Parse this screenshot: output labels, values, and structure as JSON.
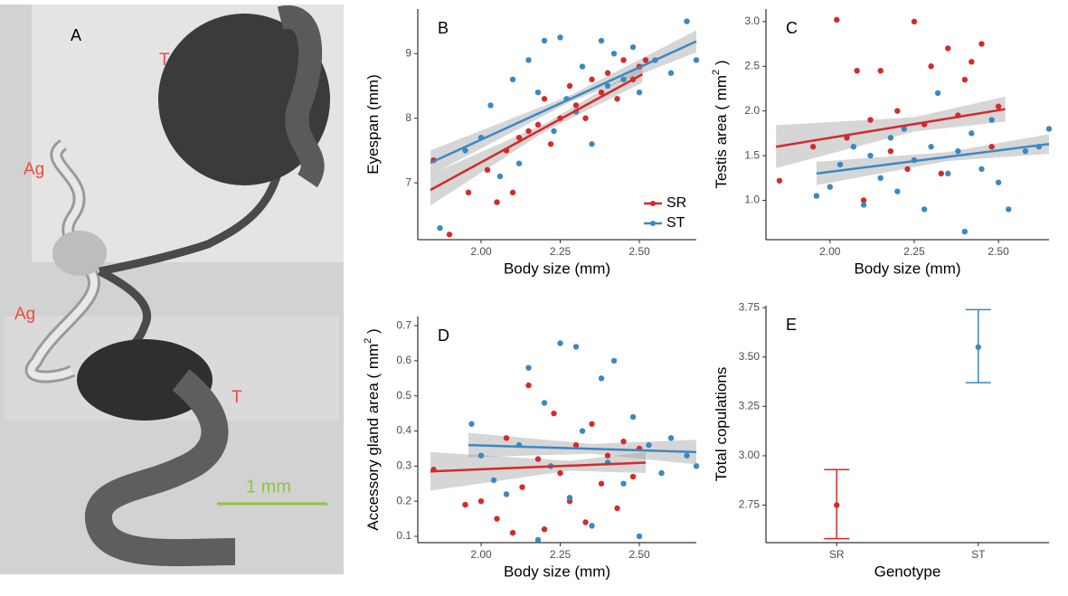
{
  "photo": {
    "panel": "A",
    "labels": [
      "T",
      "Ag",
      "Ag",
      "T"
    ],
    "scale": "1 mm"
  },
  "chart_data": [
    {
      "type": "scatter",
      "panel": "B",
      "xlabel": "Body size (mm)",
      "ylabel": "Eyespan (mm)",
      "xlim": [
        1.8,
        2.68
      ],
      "xticks": [
        {
          "value": 2,
          "label": "2.00"
        },
        {
          "value": 2.25,
          "label": "2.25"
        },
        {
          "value": 2.5,
          "label": "2.50"
        }
      ],
      "ylim": [
        6.12,
        9.69
      ],
      "yticks": [
        7,
        8,
        9
      ],
      "legend": "bottom-right",
      "series": [
        {
          "name": "SR",
          "color": "#d42a2a",
          "x": [
            1.85,
            1.9,
            1.96,
            2.02,
            2.05,
            2.08,
            2.1,
            2.12,
            2.15,
            2.18,
            2.2,
            2.22,
            2.25,
            2.28,
            2.3,
            2.33,
            2.35,
            2.38,
            2.4,
            2.43,
            2.45,
            2.48,
            2.5,
            2.52
          ],
          "y": [
            7.35,
            6.2,
            6.85,
            7.2,
            6.7,
            7.5,
            6.85,
            7.7,
            7.8,
            7.9,
            8.3,
            7.6,
            8.0,
            8.5,
            8.2,
            8.0,
            8.6,
            8.4,
            8.7,
            8.3,
            8.9,
            8.6,
            8.8,
            8.9
          ],
          "fit": {
            "x": [
              1.84,
              2.51
            ],
            "y": [
              6.89,
              8.68
            ]
          },
          "band": {
            "x": [
              1.84,
              2.2,
              2.51
            ],
            "lower": [
              6.65,
              7.79,
              8.55
            ],
            "upper": [
              7.13,
              7.91,
              8.81
            ]
          }
        },
        {
          "name": "ST",
          "color": "#3b88c3",
          "x": [
            1.87,
            1.95,
            2.0,
            2.03,
            2.06,
            2.1,
            2.12,
            2.15,
            2.18,
            2.2,
            2.23,
            2.25,
            2.27,
            2.3,
            2.32,
            2.35,
            2.38,
            2.4,
            2.42,
            2.45,
            2.48,
            2.5,
            2.55,
            2.6,
            2.65,
            2.68
          ],
          "y": [
            6.3,
            7.5,
            7.7,
            8.2,
            7.1,
            8.6,
            7.3,
            8.9,
            8.4,
            9.2,
            7.8,
            9.25,
            8.3,
            8.1,
            8.8,
            7.6,
            9.2,
            8.5,
            9.0,
            8.6,
            9.1,
            8.4,
            8.9,
            8.7,
            9.5,
            8.9
          ],
          "fit": {
            "x": [
              1.84,
              2.68
            ],
            "y": [
              7.31,
              9.19
            ]
          },
          "band": {
            "x": [
              1.84,
              2.28,
              2.68
            ],
            "lower": [
              7.12,
              8.25,
              9.02
            ],
            "upper": [
              7.5,
              8.35,
              9.36
            ]
          }
        }
      ]
    },
    {
      "type": "scatter",
      "panel": "C",
      "xlabel": "Body size (mm)",
      "ylabel": "Testis area ( mm",
      "ylabel_sup": "2",
      "ylabel_end": " )",
      "xlim": [
        1.81,
        2.65
      ],
      "xticks": [
        {
          "value": 2,
          "label": "2.00"
        },
        {
          "value": 2.25,
          "label": "2.25"
        },
        {
          "value": 2.5,
          "label": "2.50"
        }
      ],
      "ylim": [
        0.56,
        3.14
      ],
      "yticks": [
        {
          "value": 1,
          "label": "1.0"
        },
        1.5,
        {
          "value": 2,
          "label": "2.0"
        },
        2.5,
        {
          "value": 3,
          "label": "3.0"
        }
      ],
      "series": [
        {
          "color": "#d42a2a",
          "x": [
            1.85,
            1.95,
            2.02,
            2.05,
            2.08,
            2.1,
            2.12,
            2.15,
            2.18,
            2.2,
            2.23,
            2.25,
            2.28,
            2.3,
            2.33,
            2.35,
            2.38,
            2.4,
            2.42,
            2.45,
            2.48,
            2.5
          ],
          "y": [
            1.22,
            1.6,
            3.02,
            1.7,
            2.45,
            1.0,
            1.9,
            2.45,
            1.55,
            2.0,
            1.35,
            3.0,
            1.85,
            2.5,
            1.3,
            2.7,
            1.95,
            2.35,
            2.55,
            2.75,
            1.6,
            2.05
          ],
          "fit": {
            "x": [
              1.84,
              2.52
            ],
            "y": [
              1.6,
              2.02
            ]
          },
          "band": {
            "x": [
              1.84,
              2.25,
              2.52
            ],
            "lower": [
              1.36,
              1.77,
              1.88
            ],
            "upper": [
              1.84,
              1.93,
              2.16
            ]
          }
        },
        {
          "color": "#3b88c3",
          "x": [
            1.96,
            2.0,
            2.03,
            2.07,
            2.1,
            2.12,
            2.15,
            2.18,
            2.2,
            2.22,
            2.25,
            2.28,
            2.3,
            2.32,
            2.35,
            2.38,
            2.4,
            2.42,
            2.45,
            2.48,
            2.5,
            2.53,
            2.58,
            2.62,
            2.65
          ],
          "y": [
            1.05,
            1.15,
            1.4,
            1.6,
            0.95,
            1.5,
            1.25,
            1.7,
            1.1,
            1.8,
            1.45,
            0.9,
            1.6,
            2.2,
            1.3,
            1.55,
            0.65,
            1.75,
            1.35,
            1.9,
            1.2,
            0.9,
            1.55,
            1.6,
            1.8
          ],
          "fit": {
            "x": [
              1.96,
              2.65
            ],
            "y": [
              1.3,
              1.63
            ]
          },
          "band": {
            "x": [
              1.96,
              2.35,
              2.65
            ],
            "lower": [
              1.17,
              1.44,
              1.52
            ],
            "upper": [
              1.43,
              1.54,
              1.74
            ]
          }
        }
      ]
    },
    {
      "type": "scatter",
      "panel": "D",
      "xlabel": "Body size (mm)",
      "ylabel": "Accessory gland area ( mm",
      "ylabel_sup": "2",
      "ylabel_end": " )",
      "xlim": [
        1.8,
        2.68
      ],
      "xticks": [
        {
          "value": 2,
          "label": "2.00"
        },
        {
          "value": 2.25,
          "label": "2.25"
        },
        {
          "value": 2.5,
          "label": "2.50"
        }
      ],
      "ylim": [
        0.082,
        0.726
      ],
      "yticks": [
        0.1,
        0.2,
        0.3,
        0.4,
        0.5,
        0.6,
        0.7
      ],
      "series": [
        {
          "color": "#d42a2a",
          "x": [
            1.85,
            1.95,
            2.0,
            2.05,
            2.08,
            2.1,
            2.13,
            2.15,
            2.18,
            2.2,
            2.23,
            2.25,
            2.28,
            2.3,
            2.33,
            2.35,
            2.38,
            2.4,
            2.43,
            2.45,
            2.48,
            2.5
          ],
          "y": [
            0.29,
            0.19,
            0.2,
            0.15,
            0.38,
            0.11,
            0.24,
            0.53,
            0.32,
            0.12,
            0.45,
            0.28,
            0.2,
            0.36,
            0.14,
            0.42,
            0.25,
            0.33,
            0.18,
            0.37,
            0.27,
            0.35
          ],
          "fit": {
            "x": [
              1.84,
              2.52
            ],
            "y": [
              0.285,
              0.31
            ]
          },
          "band": {
            "x": [
              1.84,
              2.28,
              2.52
            ],
            "lower": [
              0.23,
              0.287,
              0.28
            ],
            "upper": [
              0.34,
              0.315,
              0.34
            ]
          }
        },
        {
          "color": "#3b88c3",
          "x": [
            1.97,
            2.0,
            2.04,
            2.08,
            2.12,
            2.15,
            2.18,
            2.2,
            2.22,
            2.25,
            2.28,
            2.3,
            2.32,
            2.35,
            2.38,
            2.4,
            2.42,
            2.45,
            2.48,
            2.5,
            2.53,
            2.57,
            2.6,
            2.65,
            2.68
          ],
          "y": [
            0.42,
            0.33,
            0.26,
            0.22,
            0.36,
            0.58,
            0.09,
            0.48,
            0.3,
            0.65,
            0.21,
            0.64,
            0.4,
            0.13,
            0.55,
            0.31,
            0.6,
            0.25,
            0.44,
            0.1,
            0.36,
            0.28,
            0.38,
            0.33,
            0.3
          ],
          "fit": {
            "x": [
              1.96,
              2.68
            ],
            "y": [
              0.36,
              0.34
            ]
          },
          "band": {
            "x": [
              1.96,
              2.35,
              2.68
            ],
            "lower": [
              0.325,
              0.335,
              0.305
            ],
            "upper": [
              0.395,
              0.363,
              0.375
            ]
          }
        }
      ]
    },
    {
      "type": "errorbar",
      "panel": "E",
      "xlabel": "Genotype",
      "ylabel": "Total copulations",
      "categories": [
        "SR",
        "ST"
      ],
      "colors": [
        "#d42a2a",
        "#3b88c3"
      ],
      "values": [
        2.75,
        3.55
      ],
      "lower": [
        2.58,
        3.37
      ],
      "upper": [
        2.93,
        3.74
      ],
      "ylim": [
        2.56,
        3.76
      ],
      "yticks": [
        2.75,
        {
          "value": 3,
          "label": "3.00"
        },
        3.25,
        {
          "value": 3.5,
          "label": "3.50"
        },
        3.75
      ]
    }
  ]
}
